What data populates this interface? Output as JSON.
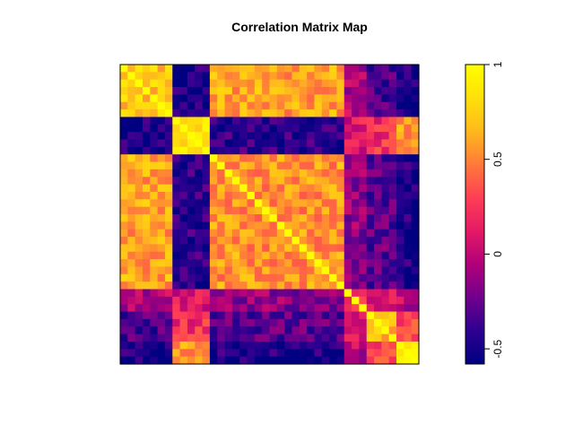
{
  "chart_data": {
    "type": "heatmap",
    "title": "Correlation Matrix Map",
    "n": 40,
    "colorbar": {
      "range": [
        -0.58,
        1.0
      ],
      "ticks": [
        -0.5,
        0,
        0.5,
        1
      ],
      "tick_labels": [
        "-0.5",
        "0",
        "0.5",
        "1"
      ]
    },
    "colormap": [
      "#000080",
      "#2e0090",
      "#70008c",
      "#b0007a",
      "#e41a65",
      "#ff3e55",
      "#ff7a3a",
      "#ffb91c",
      "#ffe00a",
      "#ffff00"
    ],
    "groups": [
      {
        "start": 0,
        "end": 7
      },
      {
        "start": 7,
        "end": 12
      },
      {
        "start": 12,
        "end": 30
      },
      {
        "start": 30,
        "end": 33
      },
      {
        "start": 33,
        "end": 37
      },
      {
        "start": 37,
        "end": 40
      }
    ],
    "group_correlation": [
      [
        0.72,
        -0.5,
        0.6,
        -0.05,
        -0.35,
        -0.48
      ],
      [
        -0.5,
        0.85,
        -0.42,
        0.1,
        0.22,
        0.55
      ],
      [
        0.6,
        -0.42,
        0.55,
        -0.15,
        -0.3,
        -0.48
      ],
      [
        -0.05,
        0.1,
        -0.15,
        0.25,
        0.05,
        0.0
      ],
      [
        -0.35,
        0.22,
        -0.3,
        0.05,
        0.7,
        0.3
      ],
      [
        -0.48,
        0.55,
        -0.48,
        0.0,
        0.3,
        0.85
      ]
    ],
    "noise": 0.18,
    "seed": 7
  }
}
